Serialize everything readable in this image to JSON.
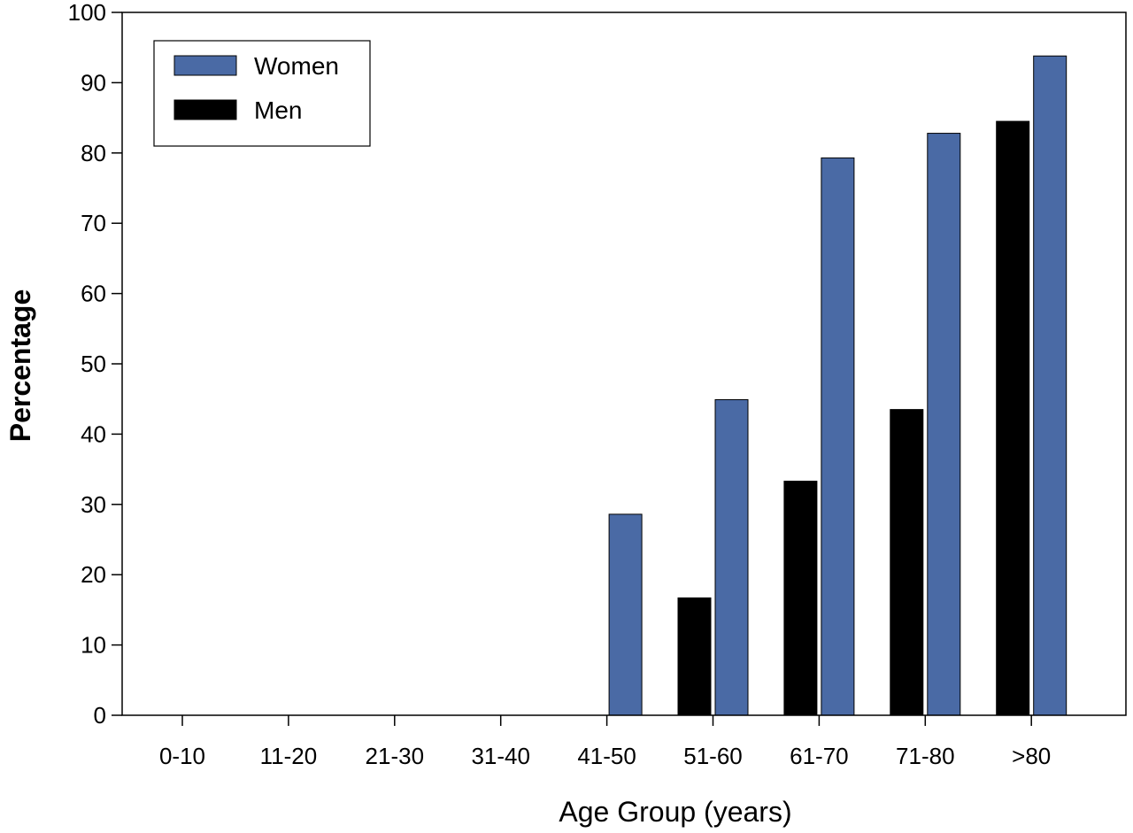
{
  "chart_data": {
    "type": "bar",
    "xlabel": "Age Group (years)",
    "ylabel": "Percentage",
    "ylim": [
      0,
      100
    ],
    "yticks": [
      0,
      10,
      20,
      30,
      40,
      50,
      60,
      70,
      80,
      90,
      100
    ],
    "grid": false,
    "legend_position": "top-left",
    "categories": [
      "0-10",
      "11-20",
      "21-30",
      "31-40",
      "41-50",
      "51-60",
      "61-70",
      "71-80",
      ">80"
    ],
    "series": [
      {
        "name": "Men",
        "color": "#000000",
        "values": [
          0,
          0,
          0,
          0,
          0,
          16.7,
          33.3,
          43.5,
          84.5
        ]
      },
      {
        "name": "Women",
        "color": "#4a6aa5",
        "values": [
          0,
          0,
          0,
          0,
          28.6,
          44.9,
          79.3,
          82.8,
          93.8
        ]
      }
    ],
    "legend": [
      {
        "name": "Women",
        "color": "#4a6aa5"
      },
      {
        "name": "Men",
        "color": "#000000"
      }
    ]
  }
}
